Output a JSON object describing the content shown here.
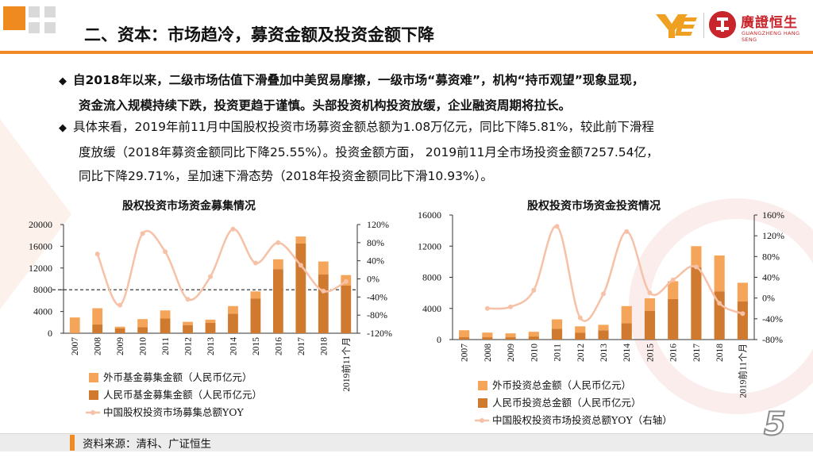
{
  "header": {
    "title": "二、资本：市场趋冷，募资金额及投资金额下降",
    "logo_name_cn": "廣證恒生",
    "logo_name_en": "GUANGZHENG HANG SENG"
  },
  "bullets": [
    {
      "lines": [
        "自2018年以来，二级市场估值下滑叠加中美贸易摩擦，一级市场“募资难”，机构“持币观望”现象显现，",
        "资金流入规模持续下跌，投资更趋于谨慎。头部投资机构投资放缓，企业融资周期将拉长。"
      ]
    },
    {
      "lines": [
        "具体来看，2019年前11月中国股权投资市场募资金额总额为1.08万亿元，同比下降5.81%，较此前下滑程",
        "度放缓（2018年募资金额同比下降25.55%）。投资金额方面， 2019前11月全市场投资金额7257.54亿，",
        "同比下降29.71%，呈加速下滑态势（2018年投资金额同比下滑10.93%）。"
      ]
    }
  ],
  "chart_data": [
    {
      "type": "bar",
      "stacked": true,
      "title": "股权投资市场资金募集情况",
      "categories": [
        "2007",
        "2008",
        "2009",
        "2010",
        "2011",
        "2012",
        "2013",
        "2014",
        "2015",
        "2016",
        "2017",
        "2018",
        "2019前11个月"
      ],
      "series": [
        {
          "name": "人民币基金募集金额（人民币亿元）",
          "values": [
            100,
            1600,
            900,
            1100,
            2700,
            1500,
            1900,
            3600,
            6400,
            11800,
            16500,
            10800,
            8800
          ],
          "color": "#d07a30"
        },
        {
          "name": "外币基金募集金额（人民币亿元）",
          "values": [
            2800,
            3000,
            300,
            1500,
            1500,
            600,
            600,
            1400,
            1300,
            1800,
            1300,
            2400,
            1900
          ],
          "color": "#f5a55a"
        },
        {
          "name": "中国股权投资市场募集总额YOY",
          "axis": "right",
          "line": true,
          "values": [
            null,
            55,
            -58,
            100,
            60,
            -45,
            5,
            110,
            35,
            80,
            30,
            -27,
            -6
          ],
          "color": "#f6c1a6"
        }
      ],
      "yleft": {
        "min": 0,
        "max": 20000,
        "ticks": [
          "0",
          "4000",
          "8000",
          "12000",
          "16000",
          "20000"
        ]
      },
      "yright": {
        "min": -120,
        "max": 120,
        "ticks": [
          "-120%",
          "-80%",
          "-40%",
          "0%",
          "40%",
          "80%",
          "120%"
        ]
      },
      "reference_line_left": 8000
    },
    {
      "type": "bar",
      "stacked": true,
      "title": "股权投资市场资金投资情况",
      "categories": [
        "2007",
        "2008",
        "2009",
        "2010",
        "2011",
        "2012",
        "2013",
        "2014",
        "2015",
        "2016",
        "2017",
        "2018",
        "2019前11个月"
      ],
      "series": [
        {
          "name": "人民币投资总金额（人民币亿元）",
          "values": [
            300,
            300,
            300,
            400,
            1400,
            900,
            1200,
            2100,
            3700,
            5200,
            9300,
            6200,
            4900
          ],
          "color": "#d07a30"
        },
        {
          "name": "外币投资总金额（人民币亿元）",
          "values": [
            900,
            600,
            500,
            600,
            1200,
            800,
            700,
            2200,
            1600,
            2300,
            2700,
            4600,
            2400
          ],
          "color": "#f5a55a"
        },
        {
          "name": "中国股权投资市场投资总额YOY（右轴）",
          "axis": "right",
          "line": true,
          "values": [
            null,
            -20,
            -17,
            15,
            138,
            -38,
            8,
            128,
            10,
            35,
            60,
            -10,
            -30
          ],
          "color": "#f6c1a6"
        }
      ],
      "yleft": {
        "min": 0,
        "max": 16000,
        "ticks": [
          "0",
          "4000",
          "8000",
          "12000",
          "16000"
        ]
      },
      "yright": {
        "min": -80,
        "max": 160,
        "ticks": [
          "-80%",
          "-40%",
          "0%",
          "40%",
          "80%",
          "120%",
          "160%"
        ]
      }
    }
  ],
  "footer": {
    "source": "资料来源：清科、广证恒生",
    "page_number": "5"
  }
}
